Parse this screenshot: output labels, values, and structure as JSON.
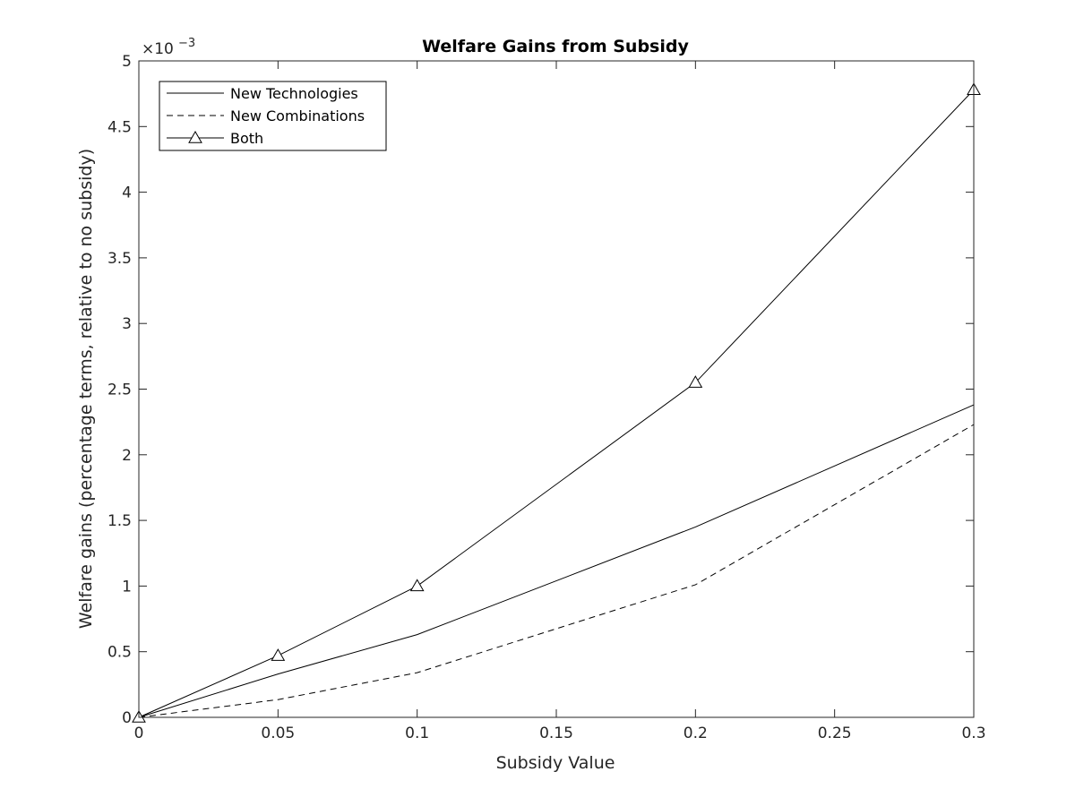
{
  "chart_data": {
    "type": "line",
    "title": "Welfare Gains from Subsidy",
    "xlabel": "Subsidy Value",
    "ylabel": "Welfare gains (percentage terms, relative to no subsidy)",
    "exponent_label": "×10",
    "exponent_power": "−3",
    "xlim": [
      0,
      0.3
    ],
    "ylim": [
      0,
      0.005
    ],
    "x_ticks": [
      0,
      0.05,
      0.1,
      0.15,
      0.2,
      0.25,
      0.3
    ],
    "x_tick_labels": [
      "0",
      "0.05",
      "0.1",
      "0.15",
      "0.2",
      "0.25",
      "0.3"
    ],
    "y_ticks": [
      0,
      0.0005,
      0.001,
      0.0015,
      0.002,
      0.0025,
      0.003,
      0.0035,
      0.004,
      0.0045,
      0.005
    ],
    "y_tick_labels": [
      "0",
      "0.5",
      "1",
      "1.5",
      "2",
      "2.5",
      "3",
      "3.5",
      "4",
      "4.5",
      "5"
    ],
    "grid": false,
    "legend_position": "top-left",
    "x": [
      0,
      0.05,
      0.1,
      0.2,
      0.3
    ],
    "series": [
      {
        "name": "New Technologies",
        "line": "solid",
        "marker": "none",
        "values": [
          0,
          0.00033,
          0.00063,
          0.00145,
          0.00238
        ]
      },
      {
        "name": "New Combinations",
        "line": "dashed",
        "marker": "none",
        "values": [
          0,
          0.000135,
          0.00034,
          0.00101,
          0.00223
        ]
      },
      {
        "name": "Both",
        "line": "solid",
        "marker": "triangle",
        "values": [
          0,
          0.00047,
          0.001,
          0.00255,
          0.00478
        ]
      }
    ],
    "colors": {
      "line": "#000000",
      "axis": "#262626",
      "background": "#ffffff"
    }
  }
}
